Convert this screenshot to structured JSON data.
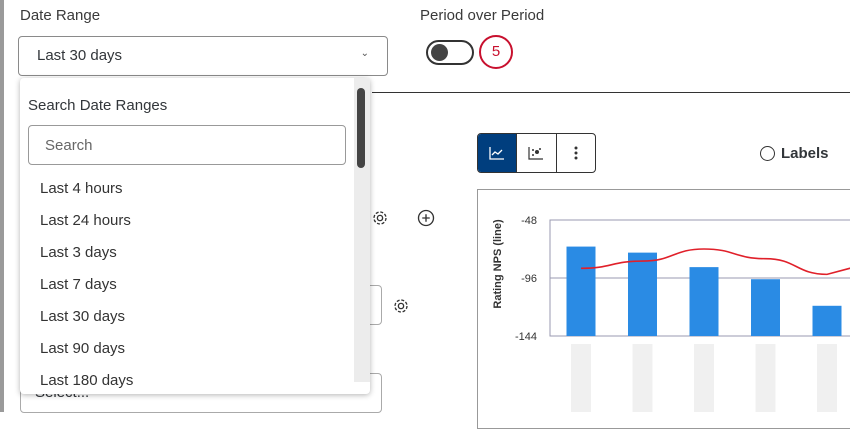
{
  "date_range": {
    "label": "Date Range",
    "value": "Last 30 days"
  },
  "period_over_period": {
    "label": "Period over Period",
    "enabled": false,
    "badge": "5"
  },
  "dropdown": {
    "title": "Search Date Ranges",
    "search_placeholder": "Search",
    "options": [
      "Last 4 hours",
      "Last 24 hours",
      "Last 3 days",
      "Last 7 days",
      "Last 30 days",
      "Last 90 days",
      "Last 180 days"
    ]
  },
  "select_field": {
    "value": "Select..."
  },
  "toolbar": {
    "labels_toggle": "Labels",
    "icons": [
      "line-chart-icon",
      "scatter-chart-icon",
      "more-vertical-icon"
    ]
  },
  "chart_data": {
    "type": "bar+line",
    "ylabel": "Rating NPS (line)",
    "yticks": [
      -48,
      -96,
      -144
    ],
    "ylim": [
      -144,
      -48
    ],
    "grid": true,
    "categories": [
      "",
      "",
      "",
      "",
      ""
    ],
    "bar_values": [
      -70,
      -75,
      -87,
      -97,
      -119
    ],
    "line_values": [
      -88,
      -82,
      -72,
      -80,
      -93
    ],
    "bar_color": "#2a8be4",
    "line_color": "#e0202a"
  }
}
